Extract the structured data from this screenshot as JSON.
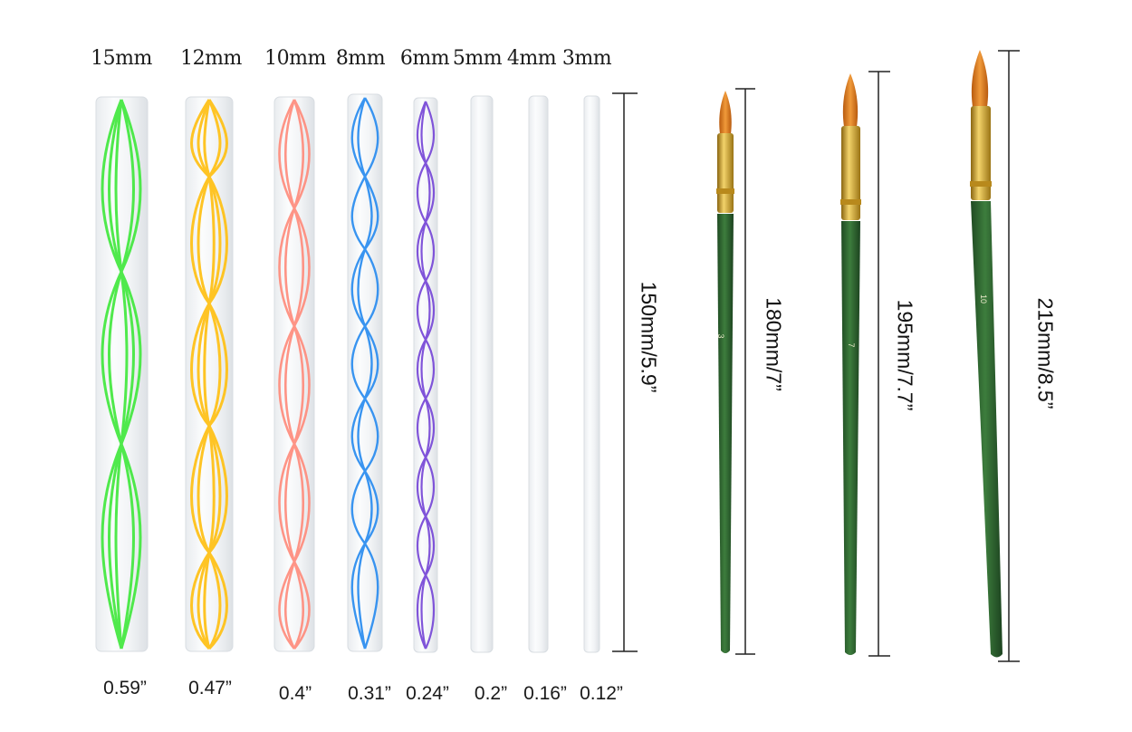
{
  "dotting_rods": {
    "diameters_mm": [
      "15mm",
      "12mm",
      "10mm",
      "8mm",
      "6mm",
      "5mm",
      "4mm",
      "3mm"
    ],
    "diameters_in": [
      "0.59”",
      "0.47”",
      "0.4”",
      "0.31”",
      "0.24”",
      "0.2”",
      "0.16”",
      "0.12”"
    ],
    "length_label": "150mm/5.9”",
    "swirl_colors": [
      "#3ee83a",
      "#ffc21a",
      "#ff8a7a",
      "#2f8ff0",
      "#7a4cd8"
    ]
  },
  "brushes": [
    {
      "length_label": "180mm/7”",
      "size_mark": "3"
    },
    {
      "length_label": "195mm/7.7”",
      "size_mark": "7"
    },
    {
      "length_label": "215mm/8.5”",
      "size_mark": "10"
    }
  ],
  "colors": {
    "brush_handle": "#2f6b2f",
    "ferrule": "#d4a52a",
    "bristles": "#e07a1c"
  }
}
